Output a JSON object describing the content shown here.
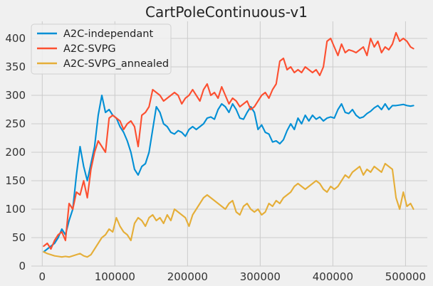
{
  "chart_data": {
    "type": "line",
    "title": "CartPoleContinuous-v1",
    "xlabel": "",
    "ylabel": "",
    "xlim": [
      -15000,
      530000
    ],
    "ylim": [
      0,
      430
    ],
    "xticks": [
      0,
      100000,
      200000,
      300000,
      400000,
      500000
    ],
    "yticks": [
      0,
      50,
      100,
      150,
      200,
      250,
      300,
      350,
      400
    ],
    "grid": true,
    "legend_position": "top-left",
    "series": [
      {
        "name": "A2C-independant",
        "color": "#008fd5",
        "x": [
          2000,
          7000,
          12000,
          17000,
          22000,
          27000,
          32000,
          37000,
          42000,
          47000,
          52000,
          57000,
          62000,
          67000,
          72000,
          77000,
          82000,
          87000,
          92000,
          97000,
          102000,
          107000,
          112000,
          117000,
          122000,
          127000,
          132000,
          137000,
          142000,
          147000,
          152000,
          157000,
          162000,
          167000,
          172000,
          177000,
          182000,
          187000,
          192000,
          197000,
          202000,
          207000,
          212000,
          217000,
          222000,
          227000,
          232000,
          237000,
          242000,
          247000,
          252000,
          257000,
          262000,
          267000,
          272000,
          277000,
          282000,
          287000,
          292000,
          297000,
          302000,
          307000,
          312000,
          317000,
          322000,
          327000,
          332000,
          337000,
          342000,
          347000,
          352000,
          357000,
          362000,
          367000,
          372000,
          377000,
          382000,
          387000,
          392000,
          397000,
          402000,
          407000,
          412000,
          417000,
          422000,
          427000,
          432000,
          437000,
          442000,
          447000,
          452000,
          457000,
          462000,
          467000,
          472000,
          477000,
          482000,
          487000,
          492000,
          497000,
          502000,
          507000,
          511000
        ],
        "y": [
          25,
          30,
          35,
          40,
          50,
          65,
          55,
          80,
          100,
          160,
          210,
          175,
          150,
          180,
          210,
          265,
          300,
          270,
          275,
          265,
          260,
          245,
          235,
          220,
          200,
          170,
          160,
          175,
          180,
          200,
          240,
          280,
          270,
          250,
          245,
          235,
          232,
          238,
          235,
          228,
          240,
          245,
          240,
          245,
          250,
          260,
          262,
          258,
          275,
          285,
          280,
          270,
          285,
          275,
          260,
          258,
          270,
          280,
          270,
          240,
          248,
          235,
          232,
          218,
          220,
          215,
          222,
          238,
          250,
          240,
          260,
          250,
          265,
          255,
          265,
          258,
          262,
          255,
          260,
          262,
          260,
          275,
          285,
          270,
          268,
          275,
          265,
          260,
          262,
          268,
          272,
          278,
          282,
          275,
          285,
          275,
          282,
          282,
          283,
          284,
          282,
          281,
          282
        ]
      },
      {
        "name": "A2C-SVPG",
        "color": "#fc4f30",
        "x": [
          2000,
          7000,
          12000,
          17000,
          22000,
          27000,
          32000,
          37000,
          42000,
          47000,
          52000,
          57000,
          62000,
          67000,
          72000,
          77000,
          82000,
          87000,
          92000,
          97000,
          102000,
          107000,
          112000,
          117000,
          122000,
          127000,
          132000,
          137000,
          142000,
          147000,
          152000,
          157000,
          162000,
          167000,
          172000,
          177000,
          182000,
          187000,
          192000,
          197000,
          202000,
          207000,
          212000,
          217000,
          222000,
          227000,
          232000,
          237000,
          242000,
          247000,
          252000,
          257000,
          262000,
          267000,
          272000,
          277000,
          282000,
          287000,
          292000,
          297000,
          302000,
          307000,
          312000,
          317000,
          322000,
          327000,
          332000,
          337000,
          342000,
          347000,
          352000,
          357000,
          362000,
          367000,
          372000,
          377000,
          382000,
          387000,
          392000,
          397000,
          402000,
          407000,
          412000,
          417000,
          422000,
          427000,
          432000,
          437000,
          442000,
          447000,
          452000,
          457000,
          462000,
          467000,
          472000,
          477000,
          482000,
          487000,
          492000,
          497000,
          502000,
          507000,
          511000
        ],
        "y": [
          35,
          40,
          30,
          45,
          55,
          60,
          45,
          110,
          100,
          130,
          125,
          150,
          120,
          170,
          200,
          220,
          210,
          200,
          260,
          265,
          260,
          255,
          240,
          250,
          255,
          245,
          210,
          265,
          270,
          280,
          310,
          305,
          300,
          290,
          295,
          300,
          305,
          300,
          285,
          295,
          300,
          310,
          300,
          290,
          310,
          320,
          300,
          305,
          295,
          315,
          300,
          285,
          295,
          290,
          280,
          285,
          290,
          275,
          280,
          290,
          300,
          305,
          295,
          310,
          320,
          360,
          365,
          345,
          350,
          340,
          345,
          340,
          350,
          345,
          340,
          345,
          335,
          350,
          395,
          400,
          385,
          370,
          390,
          375,
          380,
          378,
          375,
          380,
          385,
          370,
          400,
          385,
          395,
          375,
          385,
          380,
          390,
          410,
          395,
          400,
          395,
          385,
          382
        ]
      },
      {
        "name": "A2C-SVPG_annealed",
        "color": "#e5ae38",
        "x": [
          2000,
          7000,
          12000,
          17000,
          22000,
          27000,
          32000,
          37000,
          42000,
          47000,
          52000,
          57000,
          62000,
          67000,
          72000,
          77000,
          82000,
          87000,
          92000,
          97000,
          102000,
          107000,
          112000,
          117000,
          122000,
          127000,
          132000,
          137000,
          142000,
          147000,
          152000,
          157000,
          162000,
          167000,
          172000,
          177000,
          182000,
          187000,
          192000,
          197000,
          202000,
          207000,
          212000,
          217000,
          222000,
          227000,
          232000,
          237000,
          242000,
          247000,
          252000,
          257000,
          262000,
          267000,
          272000,
          277000,
          282000,
          287000,
          292000,
          297000,
          302000,
          307000,
          312000,
          317000,
          322000,
          327000,
          332000,
          337000,
          342000,
          347000,
          352000,
          357000,
          362000,
          367000,
          372000,
          377000,
          382000,
          387000,
          392000,
          397000,
          402000,
          407000,
          412000,
          417000,
          422000,
          427000,
          432000,
          437000,
          442000,
          447000,
          452000,
          457000,
          462000,
          467000,
          472000,
          477000,
          482000,
          487000,
          492000,
          497000,
          502000,
          507000,
          511000
        ],
        "y": [
          25,
          22,
          20,
          18,
          17,
          16,
          17,
          16,
          18,
          20,
          22,
          18,
          16,
          20,
          30,
          40,
          50,
          55,
          65,
          60,
          85,
          70,
          60,
          55,
          45,
          75,
          85,
          80,
          70,
          85,
          90,
          80,
          85,
          75,
          90,
          80,
          100,
          95,
          90,
          85,
          70,
          90,
          100,
          110,
          120,
          125,
          120,
          115,
          110,
          105,
          100,
          110,
          115,
          95,
          90,
          105,
          110,
          100,
          95,
          100,
          90,
          95,
          110,
          105,
          115,
          110,
          120,
          125,
          130,
          140,
          145,
          140,
          135,
          140,
          145,
          150,
          145,
          135,
          130,
          140,
          135,
          140,
          150,
          160,
          155,
          165,
          170,
          175,
          160,
          170,
          165,
          175,
          170,
          165,
          180,
          175,
          170,
          120,
          100,
          130,
          105,
          110,
          100
        ]
      }
    ]
  }
}
